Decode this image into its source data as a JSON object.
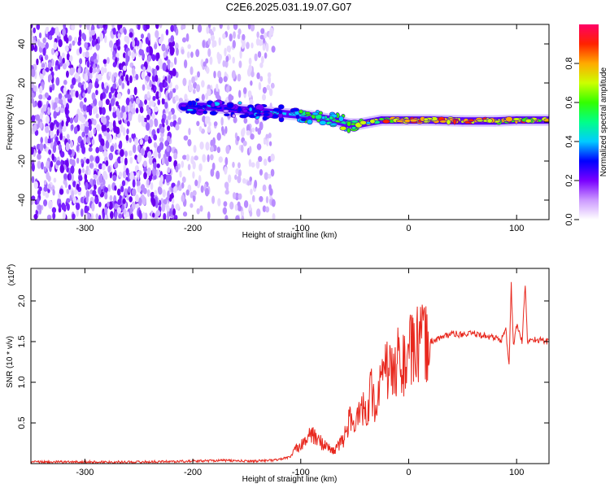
{
  "chart_title": "C2E6.2025.031.19.07.G07",
  "chart_data": [
    {
      "type": "heatmap",
      "panel": "spectrogram",
      "xlabel": "Height of straight line (km)",
      "ylabel": "Frequency (Hz)",
      "xlim": [
        -350,
        130
      ],
      "ylim": [
        -50,
        50
      ],
      "x_ticks": [
        -300,
        -200,
        -100,
        0,
        100
      ],
      "y_ticks": [
        -40,
        -20,
        0,
        20,
        40
      ],
      "colorbar": {
        "label": "Normalized spectral amplitude",
        "range": [
          0,
          1
        ],
        "ticks": [
          "0.0",
          "0.2",
          "0.4",
          "0.6",
          "0.8"
        ],
        "colors": [
          "#ffffff",
          "#cc99ff",
          "#7a00ff",
          "#0000ff",
          "#00ccff",
          "#00ff88",
          "#33ff00",
          "#ccff00",
          "#ffaa00",
          "#ff2200",
          "#ff0066"
        ]
      },
      "noise_region_x": [
        -350,
        -125
      ],
      "signal_trace": {
        "x": [
          -210,
          -190,
          -170,
          -150,
          -130,
          -110,
          -90,
          -70,
          -55,
          -45,
          -35,
          -25,
          -10,
          0,
          20,
          50,
          80,
          100,
          130
        ],
        "freq_hz": [
          8,
          8,
          7,
          6,
          5,
          4,
          3,
          1,
          -1,
          -1,
          0,
          1,
          1,
          1,
          1,
          0.5,
          0.5,
          1,
          1
        ],
        "amplitude": [
          0.3,
          0.28,
          0.25,
          0.3,
          0.35,
          0.4,
          0.45,
          0.5,
          0.55,
          0.55,
          0.6,
          0.7,
          0.75,
          0.75,
          0.8,
          0.8,
          0.8,
          0.75,
          0.7
        ]
      }
    },
    {
      "type": "line",
      "panel": "snr",
      "xlabel": "Height of straight line (km)",
      "ylabel": "SNR (10 * v/v)",
      "y_scale_note": "(x10",
      "y_scale_exponent": "4",
      "xlim": [
        -350,
        130
      ],
      "ylim": [
        0,
        2.4
      ],
      "x_ticks": [
        -300,
        -200,
        -100,
        0,
        100
      ],
      "y_ticks": [
        "0.5",
        "1.0",
        "1.5",
        "2.0"
      ],
      "series": [
        {
          "color": "#e8281e",
          "x": [
            -350,
            -300,
            -250,
            -200,
            -175,
            -150,
            -125,
            -110,
            -100,
            -95,
            -90,
            -80,
            -70,
            -60,
            -55,
            -50,
            -45,
            -40,
            -35,
            -30,
            -25,
            -20,
            -15,
            -10,
            -5,
            0,
            5,
            10,
            20,
            30,
            40,
            50,
            60,
            70,
            80,
            85,
            90,
            93,
            95,
            97,
            100,
            105,
            108,
            110,
            115,
            120,
            130
          ],
          "y": [
            0.02,
            0.02,
            0.02,
            0.03,
            0.04,
            0.03,
            0.04,
            0.08,
            0.25,
            0.3,
            0.35,
            0.25,
            0.15,
            0.3,
            0.55,
            0.4,
            0.8,
            0.6,
            0.9,
            0.7,
            1.0,
            1.2,
            1.05,
            1.3,
            1.2,
            1.35,
            1.4,
            1.45,
            1.5,
            1.55,
            1.6,
            1.58,
            1.6,
            1.57,
            1.55,
            1.5,
            1.65,
            1.2,
            2.2,
            1.45,
            1.7,
            1.5,
            2.2,
            1.5,
            1.53,
            1.52,
            1.5
          ]
        }
      ]
    }
  ]
}
